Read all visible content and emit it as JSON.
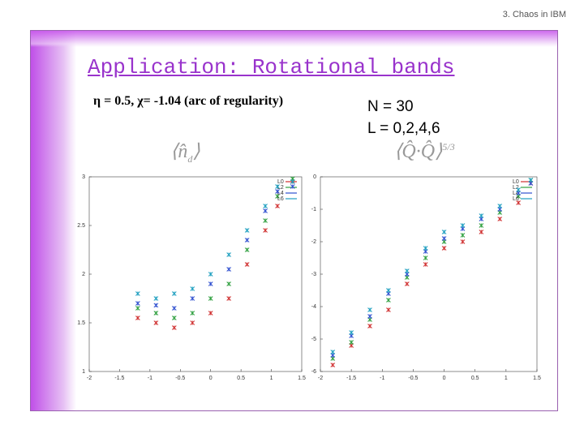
{
  "header": "3. Chaos in IBM",
  "title": "Application: Rotational bands",
  "subtitle": "η = 0.5, χ= -1.04 (arc of regularity)",
  "notes": [
    "N = 30",
    "L = 0,2,4,6"
  ],
  "formulas": [
    {
      "base": "⟨n̂",
      "sub": "d",
      "close": "⟩"
    },
    {
      "base": "⟨Q̂·Q̂⟩",
      "sup": "5/3"
    }
  ],
  "chart_data": [
    {
      "type": "scatter",
      "xlim": [
        -2,
        1.5
      ],
      "ylim": [
        1,
        3
      ],
      "xticks": [
        -2,
        -1.5,
        -1,
        -0.5,
        0,
        0.5,
        1,
        1.5
      ],
      "yticks": [
        1,
        1.5,
        2,
        2.5,
        3
      ],
      "legend": "upper right",
      "series": [
        {
          "name": "L0",
          "color": "#d03030",
          "x": [
            -1.2,
            -0.9,
            -0.6,
            -0.3,
            0,
            0.3,
            0.6,
            0.9,
            1.1,
            1.35
          ],
          "values": [
            1.55,
            1.5,
            1.45,
            1.5,
            1.6,
            1.75,
            2.1,
            2.45,
            2.7,
            2.95
          ]
        },
        {
          "name": "L2",
          "color": "#30a040",
          "x": [
            -1.2,
            -0.9,
            -0.6,
            -0.3,
            0,
            0.3,
            0.6,
            0.9,
            1.1,
            1.35
          ],
          "values": [
            1.65,
            1.6,
            1.55,
            1.6,
            1.75,
            1.9,
            2.25,
            2.55,
            2.8,
            2.98
          ]
        },
        {
          "name": "L4",
          "color": "#3050d0",
          "x": [
            -1.2,
            -0.9,
            -0.6,
            -0.3,
            0,
            0.3,
            0.6,
            0.9,
            1.1,
            1.35
          ],
          "values": [
            1.7,
            1.68,
            1.65,
            1.75,
            1.9,
            2.05,
            2.35,
            2.65,
            2.85,
            2.9
          ]
        },
        {
          "name": "L6",
          "color": "#20a0c0",
          "x": [
            -1.2,
            -0.9,
            -0.6,
            -0.3,
            0,
            0.3,
            0.6,
            0.9,
            1.1,
            1.35
          ],
          "values": [
            1.8,
            1.75,
            1.8,
            1.85,
            2.0,
            2.2,
            2.45,
            2.7,
            2.9,
            2.95
          ]
        }
      ]
    },
    {
      "type": "scatter",
      "xlim": [
        -2,
        1.5
      ],
      "ylim": [
        -6,
        0
      ],
      "xticks": [
        -2,
        -1.5,
        -1,
        -0.5,
        0,
        0.5,
        1,
        1.5
      ],
      "yticks": [
        -6,
        -5,
        -4,
        -3,
        -2,
        -1,
        0
      ],
      "legend": "upper right",
      "series": [
        {
          "name": "L0",
          "color": "#d03030",
          "x": [
            -1.8,
            -1.5,
            -1.2,
            -0.9,
            -0.6,
            -0.3,
            0,
            0.3,
            0.6,
            0.9,
            1.2,
            1.4
          ],
          "values": [
            -5.8,
            -5.2,
            -4.6,
            -4.1,
            -3.3,
            -2.7,
            -2.2,
            -2.0,
            -1.7,
            -1.3,
            -0.8,
            -0.2
          ]
        },
        {
          "name": "L2",
          "color": "#30a040",
          "x": [
            -1.8,
            -1.5,
            -1.2,
            -0.9,
            -0.6,
            -0.3,
            0,
            0.3,
            0.6,
            0.9,
            1.2,
            1.4
          ],
          "values": [
            -5.6,
            -5.1,
            -4.4,
            -3.8,
            -3.1,
            -2.5,
            -2.0,
            -1.8,
            -1.5,
            -1.1,
            -0.6,
            -0.1
          ]
        },
        {
          "name": "L4",
          "color": "#3050d0",
          "x": [
            -1.8,
            -1.5,
            -1.2,
            -0.9,
            -0.6,
            -0.3,
            0,
            0.3,
            0.6,
            0.9,
            1.2,
            1.4
          ],
          "values": [
            -5.5,
            -4.9,
            -4.3,
            -3.6,
            -3.0,
            -2.3,
            -1.9,
            -1.6,
            -1.3,
            -1.0,
            -0.5,
            -0.2
          ]
        },
        {
          "name": "L6",
          "color": "#20a0c0",
          "x": [
            -1.8,
            -1.5,
            -1.2,
            -0.9,
            -0.6,
            -0.3,
            0,
            0.3,
            0.6,
            0.9,
            1.2,
            1.4
          ],
          "values": [
            -5.4,
            -4.8,
            -4.1,
            -3.5,
            -2.9,
            -2.2,
            -1.7,
            -1.5,
            -1.2,
            -0.9,
            -0.4,
            -0.1
          ]
        }
      ]
    }
  ]
}
